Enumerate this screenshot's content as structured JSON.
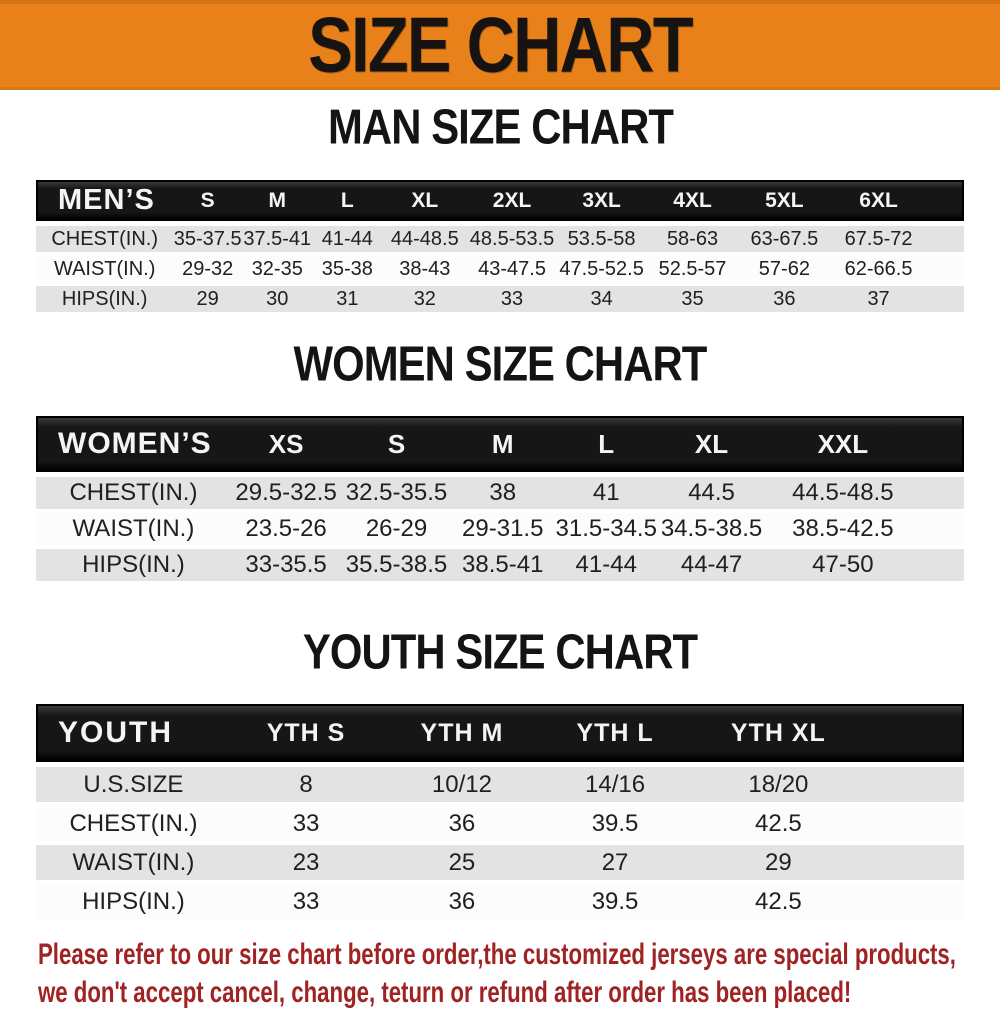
{
  "colors": {
    "banner_bg": "#E8811A",
    "bar_bg": "#161616",
    "row_alt": "#E3E3E3",
    "footer_red": "#A02323"
  },
  "banner": {
    "title": "SIZE CHART"
  },
  "sections": [
    {
      "id": "men",
      "heading": "MAN SIZE CHART",
      "table": {
        "header_label": "MEN’S",
        "columns": [
          "S",
          "M",
          "L",
          "XL",
          "2XL",
          "3XL",
          "4XL",
          "5XL",
          "6XL"
        ],
        "rows": [
          {
            "label": "CHEST(IN.)",
            "values": [
              "35-37.5",
              "37.5-41",
              "41-44",
              "44-48.5",
              "48.5-53.5",
              "53.5-58",
              "58-63",
              "63-67.5",
              "67.5-72"
            ]
          },
          {
            "label": "WAIST(IN.)",
            "values": [
              "29-32",
              "32-35",
              "35-38",
              "38-43",
              "43-47.5",
              "47.5-52.5",
              "52.5-57",
              "57-62",
              "62-66.5"
            ]
          },
          {
            "label": "HIPS(IN.)",
            "values": [
              "29",
              "30",
              "31",
              "32",
              "33",
              "34",
              "35",
              "36",
              "37"
            ]
          }
        ]
      }
    },
    {
      "id": "women",
      "heading": "WOMEN SIZE CHART",
      "table": {
        "header_label": "WOMEN’S",
        "columns": [
          "XS",
          "S",
          "M",
          "L",
          "XL",
          "XXL"
        ],
        "rows": [
          {
            "label": "CHEST(IN.)",
            "values": [
              "29.5-32.5",
              "32.5-35.5",
              "38",
              "41",
              "44.5",
              "44.5-48.5"
            ]
          },
          {
            "label": "WAIST(IN.)",
            "values": [
              "23.5-26",
              "26-29",
              "29-31.5",
              "31.5-34.5",
              "34.5-38.5",
              "38.5-42.5"
            ]
          },
          {
            "label": "HIPS(IN.)",
            "values": [
              "33-35.5",
              "35.5-38.5",
              "38.5-41",
              "41-44",
              "44-47",
              "47-50"
            ]
          }
        ]
      }
    },
    {
      "id": "youth",
      "heading": "YOUTH SIZE CHART",
      "table": {
        "header_label": "YOUTH",
        "columns": [
          "YTH S",
          "YTH M",
          "YTH L",
          "YTH XL"
        ],
        "rows": [
          {
            "label": "U.S.SIZE",
            "values": [
              "8",
              "10/12",
              "14/16",
              "18/20"
            ]
          },
          {
            "label": "CHEST(IN.)",
            "values": [
              "33",
              "36",
              "39.5",
              "42.5"
            ]
          },
          {
            "label": "WAIST(IN.)",
            "values": [
              "23",
              "25",
              "27",
              "29"
            ]
          },
          {
            "label": "HIPS(IN.)",
            "values": [
              "33",
              "36",
              "39.5",
              "42.5"
            ]
          }
        ]
      }
    }
  ],
  "footer": {
    "line1": "Please refer to our size chart before order,the customized jerseys are special products,",
    "line2": "we don't accept cancel, change, teturn or refund after order has been placed!"
  }
}
